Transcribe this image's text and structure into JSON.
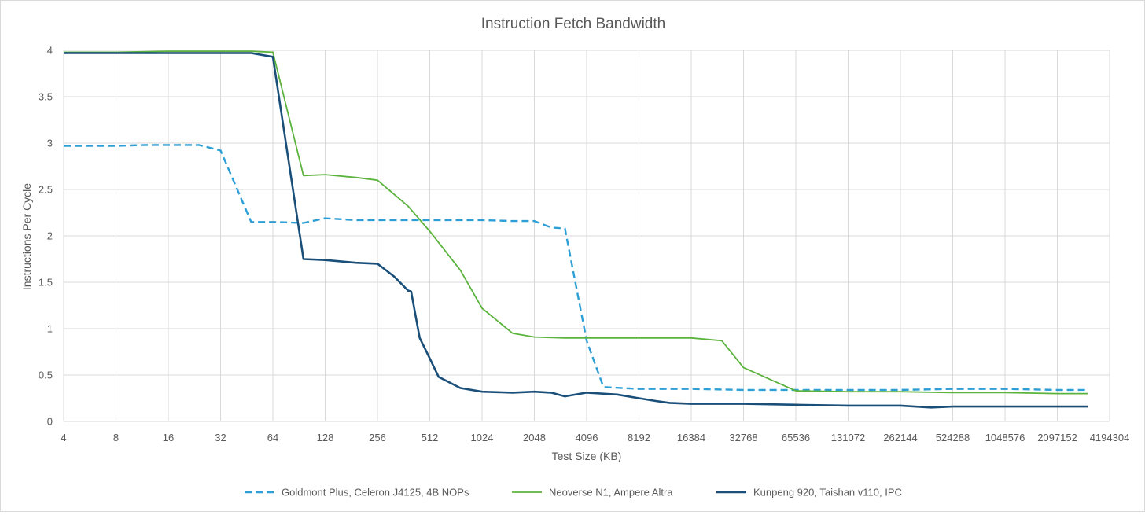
{
  "chart_data": {
    "type": "line",
    "title": "Instruction Fetch Bandwidth",
    "xlabel": "Test Size (KB)",
    "ylabel": "Instructions Per Cycle",
    "x_scale": "log2",
    "xlim": [
      4,
      4194304
    ],
    "ylim": [
      0,
      4
    ],
    "x_ticks": [
      "4",
      "8",
      "16",
      "32",
      "64",
      "128",
      "256",
      "512",
      "1024",
      "2048",
      "4096",
      "8192",
      "16384",
      "32768",
      "65536",
      "131072",
      "262144",
      "524288",
      "1048576",
      "2097152",
      "4194304"
    ],
    "y_ticks": [
      "0",
      "0.5",
      "1",
      "1.5",
      "2",
      "2.5",
      "3",
      "3.5",
      "4"
    ],
    "grid": true,
    "legend_position": "bottom",
    "series": [
      {
        "name": "Goldmont Plus, Celeron J4125, 4B NOPs",
        "color": "#2e9fd6",
        "dash": "dashed",
        "x": [
          4,
          8,
          12,
          16,
          24,
          32,
          48,
          64,
          96,
          128,
          192,
          256,
          384,
          512,
          768,
          1024,
          1536,
          2048,
          2560,
          3072,
          4096,
          5120,
          8192,
          16384,
          32768,
          65536,
          131072,
          262144,
          524288,
          1048576,
          2097152,
          3145728
        ],
        "y": [
          2.97,
          2.97,
          2.98,
          2.98,
          2.98,
          2.92,
          2.15,
          2.15,
          2.14,
          2.19,
          2.17,
          2.17,
          2.17,
          2.17,
          2.17,
          2.17,
          2.16,
          2.16,
          2.09,
          2.08,
          0.87,
          0.37,
          0.35,
          0.35,
          0.34,
          0.34,
          0.34,
          0.34,
          0.35,
          0.35,
          0.34,
          0.34
        ]
      },
      {
        "name": "Neoverse N1, Ampere Altra",
        "color": "#5bb33d",
        "dash": "solid",
        "x": [
          4,
          8,
          16,
          32,
          48,
          64,
          96,
          128,
          192,
          256,
          384,
          512,
          768,
          1024,
          1536,
          2048,
          3072,
          4096,
          8192,
          16384,
          24576,
          32768,
          65536,
          131072,
          262144,
          524288,
          1048576,
          2097152,
          3145728
        ],
        "y": [
          3.98,
          3.98,
          3.99,
          3.99,
          3.99,
          3.98,
          2.65,
          2.66,
          2.63,
          2.6,
          2.32,
          2.05,
          1.63,
          1.22,
          0.95,
          0.91,
          0.9,
          0.9,
          0.9,
          0.9,
          0.87,
          0.58,
          0.33,
          0.32,
          0.32,
          0.31,
          0.31,
          0.3,
          0.3
        ]
      },
      {
        "name": "Kunpeng 920, Taishan v110, IPC",
        "color": "#1a4f7a",
        "dash": "solid",
        "x": [
          4,
          8,
          16,
          32,
          48,
          64,
          96,
          128,
          192,
          256,
          320,
          384,
          400,
          448,
          512,
          576,
          768,
          1024,
          1536,
          2048,
          2560,
          3072,
          4096,
          6144,
          8192,
          10240,
          12288,
          16384,
          20480,
          32768,
          65536,
          131072,
          262144,
          393216,
          524288,
          1048576,
          2097152,
          3145728
        ],
        "y": [
          3.97,
          3.97,
          3.97,
          3.97,
          3.97,
          3.93,
          1.75,
          1.74,
          1.71,
          1.7,
          1.56,
          1.41,
          1.4,
          0.9,
          0.68,
          0.48,
          0.36,
          0.32,
          0.31,
          0.32,
          0.31,
          0.27,
          0.31,
          0.29,
          0.25,
          0.22,
          0.2,
          0.19,
          0.19,
          0.19,
          0.18,
          0.17,
          0.17,
          0.15,
          0.16,
          0.16,
          0.16,
          0.16
        ]
      }
    ]
  }
}
